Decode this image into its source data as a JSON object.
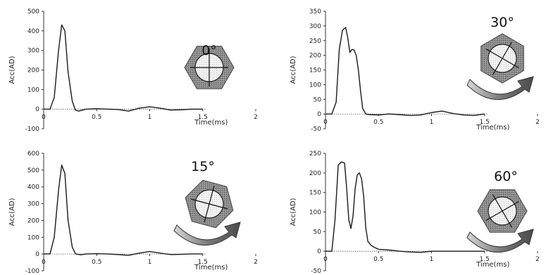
{
  "chart_data": [
    {
      "type": "line",
      "xlabel": "Time(ms)",
      "ylabel": "Acc(AD)",
      "xlim": [
        0,
        2
      ],
      "ylim": [
        -100,
        500
      ],
      "xticks": [
        0,
        0.5,
        1,
        1.5,
        2
      ],
      "xtick_labels": [
        "0",
        "0.5",
        "1",
        "1.5",
        "2"
      ],
      "yticks": [
        -100,
        0,
        100,
        200,
        300,
        400,
        500
      ],
      "annotation": "0°",
      "rotation_arrow": false,
      "x": [
        0.0,
        0.06,
        0.1,
        0.14,
        0.17,
        0.2,
        0.23,
        0.27,
        0.3,
        0.33,
        0.4,
        0.5,
        0.6,
        0.7,
        0.8,
        0.9,
        1.0,
        1.1,
        1.2,
        1.3,
        1.4,
        1.5
      ],
      "y": [
        0,
        0,
        60,
        300,
        430,
        400,
        190,
        40,
        -5,
        -10,
        0,
        2,
        0,
        -2,
        -10,
        5,
        12,
        5,
        -5,
        -3,
        0,
        0
      ]
    },
    {
      "type": "line",
      "xlabel": "Time(ms)",
      "ylabel": "Acc(AD)",
      "xlim": [
        0,
        2
      ],
      "ylim": [
        -50,
        350
      ],
      "xticks": [
        0,
        0.5,
        1,
        1.5,
        2
      ],
      "xtick_labels": [
        "0",
        "0.5",
        "1",
        "1.5",
        "2"
      ],
      "yticks": [
        -50,
        0,
        50,
        100,
        150,
        200,
        250,
        300,
        350
      ],
      "annotation": "30°",
      "rotation_arrow": true,
      "x": [
        0.0,
        0.06,
        0.1,
        0.13,
        0.16,
        0.19,
        0.21,
        0.23,
        0.25,
        0.27,
        0.29,
        0.31,
        0.33,
        0.35,
        0.38,
        0.42,
        0.5,
        0.6,
        0.7,
        0.8,
        0.9,
        1.0,
        1.1,
        1.2,
        1.3,
        1.4,
        1.5
      ],
      "y": [
        0,
        0,
        40,
        220,
        285,
        295,
        260,
        210,
        220,
        218,
        200,
        150,
        80,
        20,
        0,
        -2,
        -3,
        0,
        -2,
        -5,
        -3,
        5,
        10,
        2,
        -3,
        -5,
        0
      ]
    },
    {
      "type": "line",
      "xlabel": "Time(ms)",
      "ylabel": "Acc(AD)",
      "xlim": [
        0,
        2
      ],
      "ylim": [
        -100,
        600
      ],
      "xticks": [
        0,
        0.5,
        1,
        1.5,
        2
      ],
      "xtick_labels": [
        "0",
        "0.5",
        "1",
        "1.5",
        "2"
      ],
      "yticks": [
        -100,
        0,
        100,
        200,
        300,
        400,
        500,
        600
      ],
      "annotation": "15°",
      "rotation_arrow": true,
      "x": [
        0.0,
        0.06,
        0.1,
        0.14,
        0.17,
        0.2,
        0.23,
        0.27,
        0.3,
        0.35,
        0.4,
        0.5,
        0.6,
        0.7,
        0.8,
        0.9,
        1.0,
        1.1,
        1.2,
        1.3,
        1.4,
        1.5
      ],
      "y": [
        0,
        0,
        100,
        380,
        530,
        480,
        200,
        40,
        0,
        -5,
        0,
        2,
        0,
        -3,
        -8,
        5,
        15,
        5,
        -3,
        -2,
        0,
        0
      ]
    },
    {
      "type": "line",
      "xlabel": "Time(ms)",
      "ylabel": "Acc(AD)",
      "xlim": [
        0,
        2
      ],
      "ylim": [
        -50,
        250
      ],
      "xticks": [
        0,
        0.5,
        1,
        1.5,
        2
      ],
      "xtick_labels": [
        "0",
        "0.5",
        "1",
        "1.5",
        "2"
      ],
      "yticks": [
        -50,
        0,
        50,
        100,
        150,
        200,
        250
      ],
      "annotation": "60°",
      "rotation_arrow": true,
      "x": [
        0.0,
        0.06,
        0.09,
        0.12,
        0.15,
        0.18,
        0.2,
        0.22,
        0.24,
        0.26,
        0.28,
        0.3,
        0.32,
        0.34,
        0.36,
        0.38,
        0.4,
        0.43,
        0.46,
        0.5,
        0.6,
        0.7,
        0.8,
        0.9,
        1.0,
        1.2,
        1.4,
        1.5
      ],
      "y": [
        0,
        0,
        80,
        220,
        228,
        225,
        160,
        80,
        58,
        90,
        160,
        195,
        200,
        185,
        140,
        60,
        25,
        15,
        10,
        5,
        3,
        0,
        -2,
        -3,
        0,
        0,
        0,
        0
      ]
    }
  ]
}
